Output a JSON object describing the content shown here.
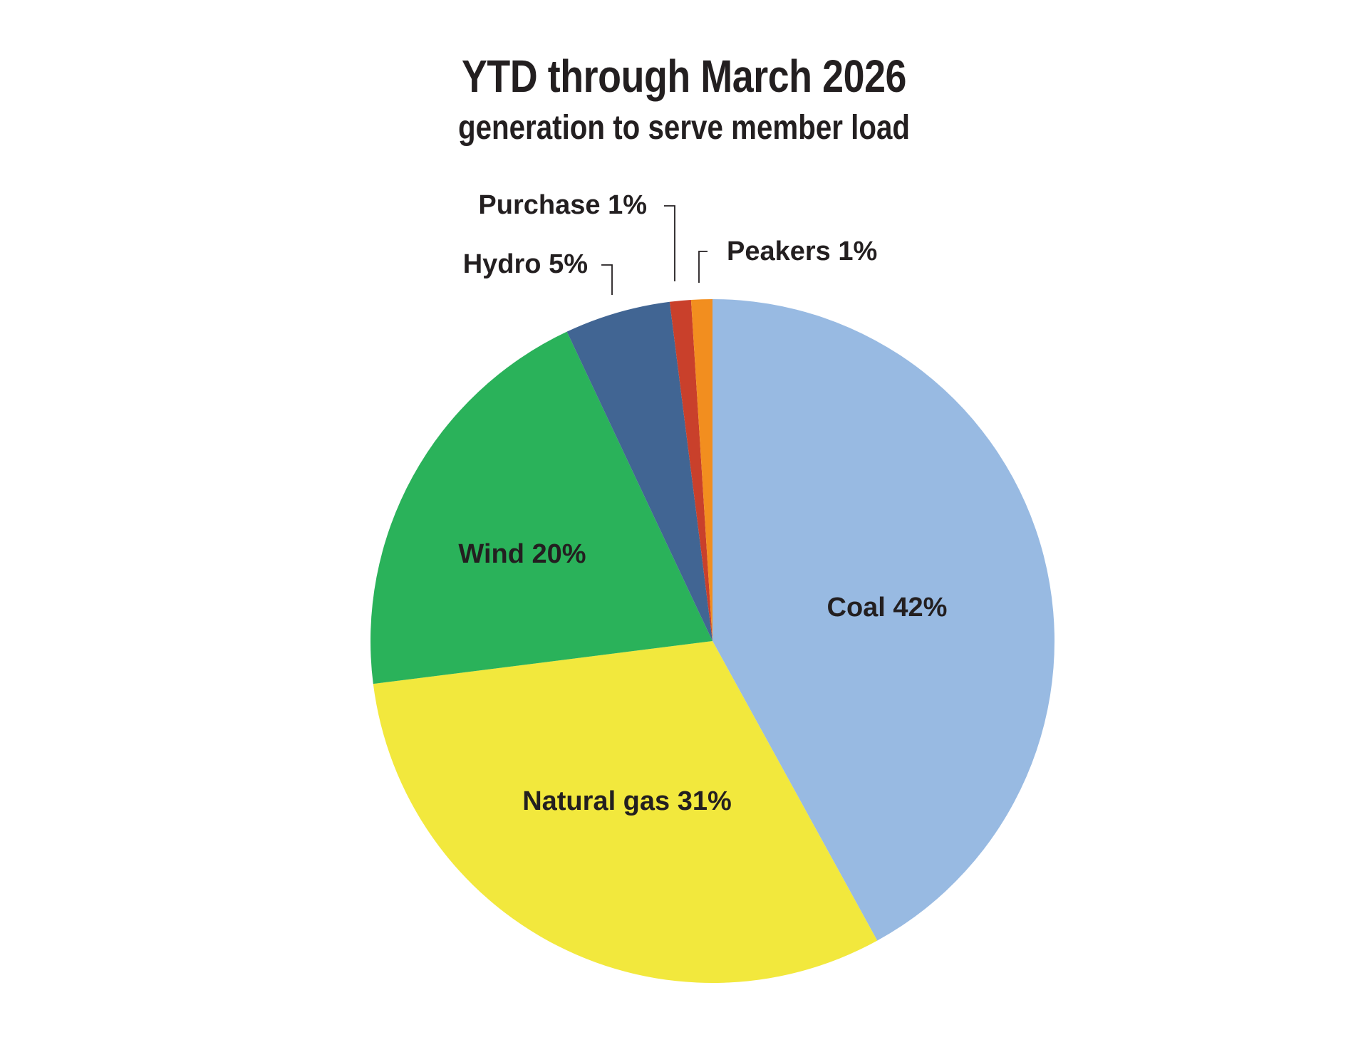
{
  "chart_data": {
    "type": "pie",
    "title": "YTD through March 2026",
    "subtitle": "generation to serve member load",
    "start_angle_deg": 0,
    "direction": "clockwise",
    "slices": [
      {
        "label": "Coal 42%",
        "name": "Coal",
        "value": 42,
        "color": "#98BAE2"
      },
      {
        "label": "Natural gas 31%",
        "name": "Natural gas",
        "value": 31,
        "color": "#F2E83D"
      },
      {
        "label": "Wind 20%",
        "name": "Wind",
        "value": 20,
        "color": "#2AB25A"
      },
      {
        "label": "Hydro 5%",
        "name": "Hydro",
        "value": 5,
        "color": "#416593"
      },
      {
        "label": "Purchase 1%",
        "name": "Purchase",
        "value": 1,
        "color": "#C9402B"
      },
      {
        "label": "Peakers 1%",
        "name": "Peakers",
        "value": 1,
        "color": "#F28E1F"
      }
    ]
  }
}
